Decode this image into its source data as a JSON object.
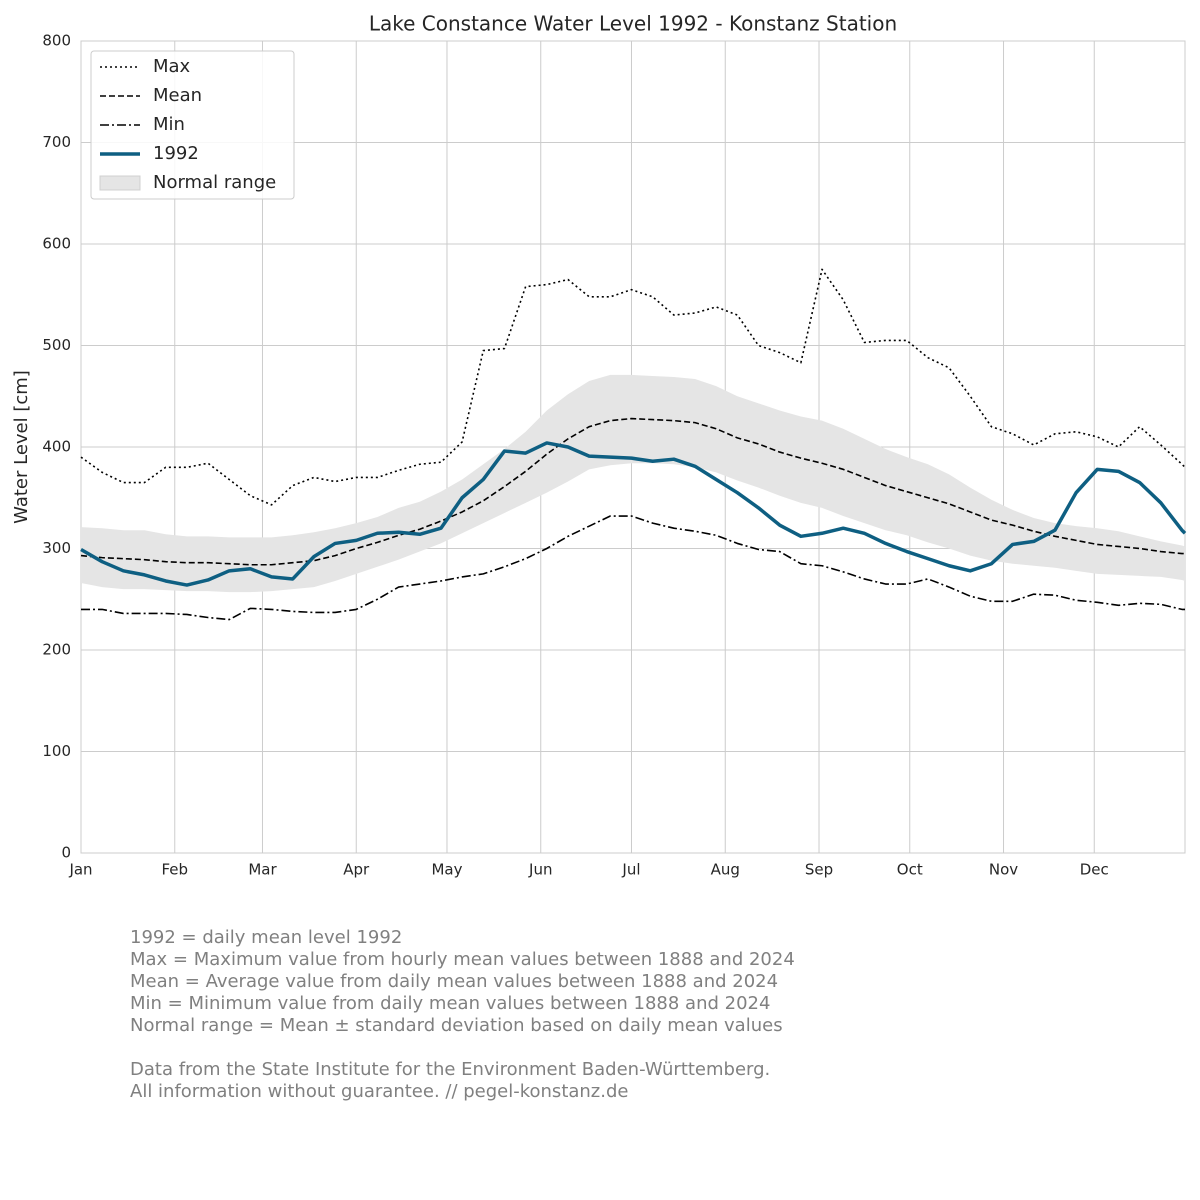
{
  "chart_data": {
    "type": "line",
    "title": "Lake Constance Water Level 1992 - Konstanz Station",
    "ylabel": "Water Level [cm]",
    "x": [
      0,
      7,
      14,
      21,
      28,
      35,
      42,
      49,
      56,
      63,
      70,
      77,
      84,
      91,
      98,
      105,
      112,
      119,
      126,
      133,
      140,
      147,
      154,
      161,
      168,
      175,
      182,
      189,
      196,
      203,
      210,
      217,
      224,
      231,
      238,
      245,
      252,
      259,
      266,
      273,
      280,
      287,
      294,
      301,
      308,
      315,
      322,
      329,
      336,
      343,
      350,
      357,
      364,
      365
    ],
    "xlim": [
      0,
      365
    ],
    "xticks": [
      {
        "value": 0,
        "label": "Jan"
      },
      {
        "value": 31,
        "label": "Feb"
      },
      {
        "value": 60,
        "label": "Mar"
      },
      {
        "value": 91,
        "label": "Apr"
      },
      {
        "value": 121,
        "label": "May"
      },
      {
        "value": 152,
        "label": "Jun"
      },
      {
        "value": 182,
        "label": "Jul"
      },
      {
        "value": 213,
        "label": "Aug"
      },
      {
        "value": 244,
        "label": "Sep"
      },
      {
        "value": 274,
        "label": "Oct"
      },
      {
        "value": 305,
        "label": "Nov"
      },
      {
        "value": 335,
        "label": "Dec"
      }
    ],
    "ylim": [
      0,
      800
    ],
    "yticks": [
      0,
      100,
      200,
      300,
      400,
      500,
      600,
      700,
      800
    ],
    "grid": true,
    "legend": "upper left",
    "band": {
      "name": "Normal range",
      "color": "#e5e5e5",
      "upper": [
        321,
        320,
        318,
        318,
        314,
        312,
        312,
        311,
        311,
        311,
        313,
        316,
        320,
        325,
        331,
        340,
        346,
        356,
        368,
        383,
        398,
        415,
        436,
        452,
        465,
        471,
        471,
        470,
        469,
        467,
        460,
        450,
        443,
        436,
        430,
        426,
        418,
        408,
        398,
        390,
        383,
        373,
        360,
        348,
        338,
        330,
        325,
        322,
        320,
        317,
        312,
        307,
        303,
        302
      ],
      "lower": [
        266,
        262,
        260,
        260,
        259,
        258,
        258,
        257,
        257,
        258,
        260,
        262,
        268,
        275,
        282,
        289,
        297,
        305,
        315,
        325,
        335,
        345,
        355,
        366,
        378,
        382,
        384,
        384,
        383,
        380,
        375,
        367,
        360,
        352,
        345,
        340,
        332,
        325,
        318,
        313,
        306,
        300,
        293,
        288,
        285,
        283,
        281,
        278,
        275,
        274,
        273,
        272,
        269,
        268
      ]
    },
    "series": [
      {
        "name": "Max",
        "color": "#000000",
        "style": "dotted",
        "values": [
          390,
          375,
          365,
          365,
          380,
          380,
          384,
          368,
          352,
          343,
          362,
          370,
          366,
          370,
          370,
          377,
          383,
          385,
          405,
          495,
          497,
          558,
          560,
          565,
          548,
          548,
          555,
          548,
          530,
          532,
          538,
          530,
          500,
          493,
          483,
          575,
          545,
          503,
          505,
          505,
          488,
          478,
          450,
          420,
          413,
          402,
          413,
          415,
          410,
          400,
          420,
          402,
          383,
          380
        ]
      },
      {
        "name": "Mean",
        "color": "#000000",
        "style": "dashed",
        "values": [
          293,
          291,
          290,
          289,
          287,
          286,
          286,
          285,
          284,
          284,
          286,
          288,
          293,
          300,
          306,
          313,
          319,
          327,
          336,
          347,
          361,
          376,
          393,
          408,
          420,
          426,
          428,
          427,
          426,
          424,
          418,
          409,
          403,
          395,
          389,
          384,
          378,
          370,
          362,
          356,
          350,
          344,
          336,
          328,
          323,
          317,
          312,
          308,
          304,
          302,
          300,
          297,
          295,
          295
        ]
      },
      {
        "name": "Min",
        "color": "#000000",
        "style": "dashdot",
        "values": [
          240,
          240,
          236,
          236,
          236,
          235,
          232,
          230,
          241,
          240,
          238,
          237,
          237,
          240,
          250,
          262,
          265,
          268,
          272,
          275,
          282,
          290,
          300,
          312,
          322,
          332,
          332,
          325,
          320,
          317,
          313,
          305,
          299,
          297,
          285,
          283,
          277,
          270,
          265,
          265,
          270,
          262,
          253,
          248,
          248,
          255,
          254,
          249,
          247,
          244,
          246,
          245,
          240,
          240
        ]
      },
      {
        "name": "1992",
        "color": "#0e5f82",
        "style": "solid",
        "values": [
          299,
          287,
          278,
          274,
          268,
          264,
          269,
          278,
          280,
          272,
          270,
          292,
          305,
          308,
          315,
          316,
          314,
          320,
          350,
          368,
          396,
          394,
          404,
          400,
          391,
          390,
          389,
          386,
          388,
          381,
          368,
          355,
          340,
          323,
          312,
          315,
          320,
          315,
          305,
          297,
          290,
          283,
          278,
          285,
          304,
          307,
          318,
          355,
          378,
          376,
          365,
          345,
          318,
          315
        ]
      }
    ],
    "notes": [
      "1992 = daily mean level 1992",
      "Max = Maximum value from hourly mean values between 1888 and 2024",
      "Mean = Average value from daily mean values between 1888 and 2024",
      "Min = Minimum value from daily mean values between 1888 and 2024",
      "Normal range = Mean ± standard deviation based on daily mean values",
      "Data from the State Institute for the Environment Baden-Württemberg.",
      "All information without guarantee. // pegel-konstanz.de"
    ]
  }
}
